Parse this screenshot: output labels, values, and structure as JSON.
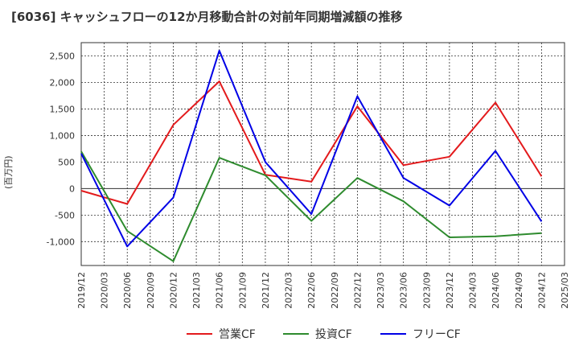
{
  "title": "[6036]  キャッシュフローの12か月移動合計の対前年同期増減額の推移",
  "y_unit_label": "(百万円)",
  "colors": {
    "operating": "#e31a1c",
    "investing": "#2e8b2e",
    "free": "#0000e6",
    "grid": "#333333",
    "text": "#333333"
  },
  "chart_data": {
    "type": "line",
    "title": "[6036]  キャッシュフローの12か月移動合計の対前年同期増減額の推移",
    "ylabel": "(百万円)",
    "xlabel": "",
    "ylim": [
      -1450,
      2750
    ],
    "yticks": [
      -1000,
      -500,
      0,
      500,
      1000,
      1500,
      2000,
      2500
    ],
    "ytick_labels": [
      "-1,000",
      "-500",
      "0",
      "500",
      "1,000",
      "1,500",
      "2,000",
      "2,500"
    ],
    "xtick_labels": [
      "2019/12",
      "2020/03",
      "2020/06",
      "2020/09",
      "2020/12",
      "2021/03",
      "2021/06",
      "2021/09",
      "2021/12",
      "2022/03",
      "2022/06",
      "2022/09",
      "2022/12",
      "2023/03",
      "2023/06",
      "2023/09",
      "2023/12",
      "2024/03",
      "2024/06",
      "2024/09",
      "2024/12",
      "2025/03"
    ],
    "x": [
      "2019/12",
      "2020/06",
      "2020/12",
      "2021/06",
      "2021/12",
      "2022/06",
      "2022/12",
      "2023/06",
      "2023/12",
      "2024/06",
      "2024/12"
    ],
    "grid": true,
    "legend_position": "bottom",
    "series": [
      {
        "name": "営業CF",
        "color_key": "operating",
        "values": [
          -40,
          -290,
          1200,
          2020,
          260,
          130,
          1550,
          440,
          600,
          1620,
          230
        ]
      },
      {
        "name": "投資CF",
        "color_key": "investing",
        "values": [
          700,
          -800,
          -1370,
          580,
          250,
          -610,
          200,
          -240,
          -920,
          -900,
          -840
        ]
      },
      {
        "name": "フリーCF",
        "color_key": "free",
        "values": [
          660,
          -1090,
          -170,
          2600,
          500,
          -480,
          1740,
          200,
          -320,
          710,
          -620
        ]
      }
    ]
  }
}
